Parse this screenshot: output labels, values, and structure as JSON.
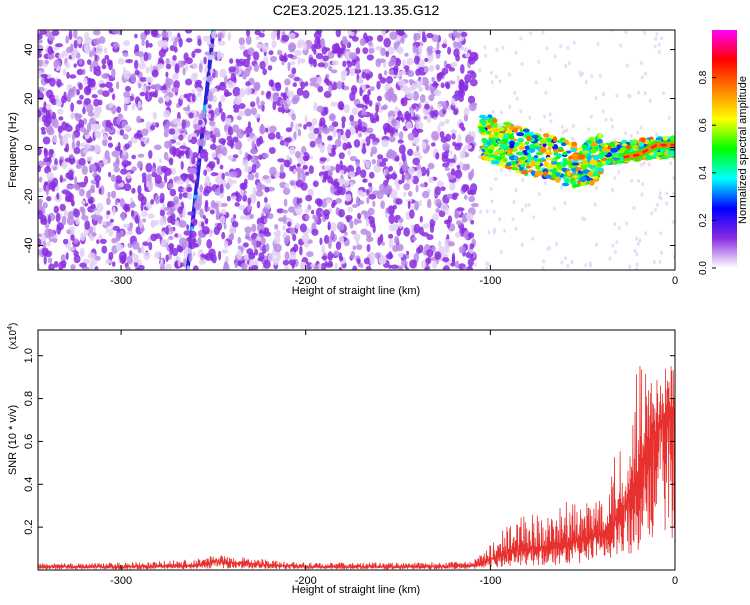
{
  "title": "C2E3.2025.121.13.35.G12",
  "colorbar": {
    "label": "Normalized spectral amplitude",
    "ticks": [
      "0.0",
      "0.2",
      "0.4",
      "0.6",
      "0.8"
    ],
    "tick_values": [
      0.0,
      0.2,
      0.4,
      0.6,
      0.8
    ],
    "range": [
      0,
      1
    ],
    "colors": [
      "#ffffff",
      "#8a2be2",
      "#0000ff",
      "#00ffff",
      "#00ff00",
      "#ffff00",
      "#ff8000",
      "#ff0000",
      "#ff00ff"
    ]
  },
  "top_panel": {
    "ylabel": "Frequency (Hz)",
    "xlabel": "Height of straight line (km)"
  },
  "bottom_panel": {
    "ylabel": "SNR (10 * v/v)",
    "multiplier": "(x10",
    "multiplier_exp": "4",
    "multiplier_close": ")",
    "xlabel": "Height of straight line (km)"
  },
  "chart_data": [
    {
      "type": "heatmap",
      "title": "C2E3.2025.121.13.35.G12",
      "xlabel": "Height of straight line (km)",
      "ylabel": "Frequency (Hz)",
      "xlim": [
        -345,
        0
      ],
      "ylim": [
        -50,
        48
      ],
      "xticks": [
        -300,
        -200,
        -100,
        0
      ],
      "xtick_labels": [
        "-300",
        "-200",
        "-100",
        "0"
      ],
      "yticks": [
        -40,
        -20,
        0,
        20,
        40
      ],
      "ytick_labels": [
        "-40",
        "-20",
        "0",
        "20",
        "40"
      ],
      "zlabel": "Normalized spectral amplitude",
      "zlim": [
        0,
        1
      ],
      "features": [
        {
          "kind": "diagonal_line",
          "x0": -264,
          "y0": -50,
          "x1": -250,
          "y1": 48,
          "amplitude": 0.3
        },
        {
          "kind": "noise_field",
          "x_range": [
            -345,
            -108
          ],
          "y_range": [
            -50,
            48
          ],
          "amplitude": 0.15
        },
        {
          "kind": "signal_band",
          "points": [
            [
              -105,
              5
            ],
            [
              -95,
              2
            ],
            [
              -80,
              -2
            ],
            [
              -65,
              -5
            ],
            [
              -50,
              -8
            ],
            [
              -40,
              -3
            ],
            [
              -30,
              -2
            ],
            [
              -20,
              -1
            ],
            [
              -10,
              0
            ],
            [
              0,
              0
            ]
          ],
          "amplitude": 0.55
        },
        {
          "kind": "strong_segment",
          "points": [
            [
              -28,
              -4
            ],
            [
              -20,
              -3
            ],
            [
              -15,
              -1
            ],
            [
              -10,
              1
            ],
            [
              0,
              1
            ]
          ],
          "amplitude": 0.95
        }
      ]
    },
    {
      "type": "line",
      "xlabel": "Height of straight line (km)",
      "ylabel": "SNR (10 * v/v)",
      "y_multiplier": "x10^4",
      "xlim": [
        -345,
        0
      ],
      "ylim": [
        0,
        1.12
      ],
      "xticks": [
        -300,
        -200,
        -100,
        0
      ],
      "xtick_labels": [
        "-300",
        "-200",
        "-100",
        "0"
      ],
      "yticks": [
        0.2,
        0.4,
        0.6,
        0.8,
        1.0
      ],
      "ytick_labels": [
        "0.2",
        "0.4",
        "0.6",
        "0.8",
        "1.0"
      ],
      "color": "#e8312f",
      "series": [
        {
          "x": [
            -345,
            -300,
            -260,
            -250,
            -200,
            -150,
            -110,
            -100,
            -90,
            -80,
            -70,
            -60,
            -50,
            -40,
            -30,
            -25,
            -20,
            -15,
            -10,
            -5,
            0
          ],
          "y_baseline": [
            0.015,
            0.015,
            0.02,
            0.04,
            0.015,
            0.015,
            0.02,
            0.05,
            0.08,
            0.1,
            0.11,
            0.12,
            0.14,
            0.17,
            0.25,
            0.35,
            0.45,
            0.6,
            0.65,
            0.72,
            0.75
          ],
          "y_peak": [
            0.03,
            0.035,
            0.05,
            0.07,
            0.035,
            0.035,
            0.04,
            0.12,
            0.22,
            0.28,
            0.25,
            0.32,
            0.3,
            0.38,
            0.6,
            0.55,
            1.1,
            0.88,
            0.9,
            0.95,
            0.98
          ]
        }
      ]
    }
  ]
}
